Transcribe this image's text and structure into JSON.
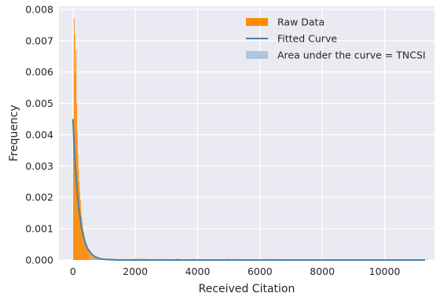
{
  "chart_data": {
    "type": "histogram",
    "title": "",
    "xlabel": "Received Citation",
    "ylabel": "Frequency",
    "xlim": [
      -450,
      11600
    ],
    "ylim": [
      0,
      0.0081
    ],
    "xticks": [
      0,
      2000,
      4000,
      6000,
      8000,
      10000
    ],
    "xtick_labels": [
      "0",
      "2000",
      "4000",
      "6000",
      "8000",
      "10000"
    ],
    "yticks": [
      0,
      0.001,
      0.002,
      0.003,
      0.004,
      0.005,
      0.006,
      0.007,
      0.008
    ],
    "ytick_labels": [
      "0.000",
      "0.001",
      "0.002",
      "0.003",
      "0.004",
      "0.005",
      "0.006",
      "0.007",
      "0.008"
    ],
    "grid": true,
    "legend_position": "top-right",
    "colors": {
      "plot_background": "#eaeaf2",
      "grid": "#ffffff",
      "raw_data": "#ff8c00",
      "fitted_curve": "#4682b4",
      "area_fill": "#b0c4de"
    },
    "series": [
      {
        "name": "Raw Data",
        "kind": "histogram",
        "x": [
          10,
          30,
          50,
          70,
          90,
          110,
          130,
          150,
          170,
          190,
          210,
          230,
          250,
          270,
          290,
          310,
          330,
          350,
          370,
          390,
          410,
          430,
          450,
          470,
          490,
          520,
          560,
          600,
          640,
          680,
          720,
          760,
          800,
          850,
          900,
          950,
          1000,
          1050,
          1100,
          1150,
          1200,
          1250,
          1300,
          1560,
          1950,
          2020,
          2080,
          2130,
          2200,
          2250,
          2310,
          2390,
          2600,
          2950,
          3320,
          3380,
          3860,
          4960,
          5150,
          6180,
          6380,
          11350
        ],
        "values": [
          0.0045,
          0.0077,
          0.0072,
          0.006,
          0.0067,
          0.005,
          0.0041,
          0.0034,
          0.0029,
          0.0025,
          0.0022,
          0.0019,
          0.0016,
          0.0014,
          0.0012,
          0.001,
          0.0009,
          0.0008,
          0.0007,
          0.0006,
          0.0005,
          0.00045,
          0.0004,
          0.00035,
          0.0003,
          0.00025,
          0.0002,
          0.00018,
          0.00015,
          0.00012,
          0.0001,
          9e-05,
          8e-05,
          6e-05,
          5e-05,
          4e-05,
          4e-05,
          3e-05,
          3e-05,
          3e-05,
          3e-05,
          2e-05,
          2e-05,
          3e-05,
          3e-05,
          3e-05,
          3e-05,
          3e-05,
          3e-05,
          3e-05,
          3e-05,
          3e-05,
          3e-05,
          3e-05,
          3e-05,
          3e-05,
          3e-05,
          3e-05,
          3e-05,
          3e-05,
          3e-05,
          3e-05
        ]
      },
      {
        "name": "Fitted Curve",
        "kind": "line",
        "x": [
          0,
          25,
          50,
          75,
          100,
          125,
          150,
          175,
          200,
          250,
          300,
          350,
          400,
          450,
          500,
          600,
          700,
          800,
          900,
          1000,
          1200,
          1500,
          2000,
          3000,
          4000,
          6000,
          8000,
          10000,
          11300
        ],
        "values": [
          0.0045,
          0.00394,
          0.00345,
          0.00302,
          0.00265,
          0.00232,
          0.00203,
          0.00178,
          0.00156,
          0.00119,
          0.00092,
          0.0007,
          0.00054,
          0.00041,
          0.00032,
          0.00019,
          0.00011,
          6.5e-05,
          3.8e-05,
          2.2e-05,
          8e-06,
          1.5e-06,
          1e-07,
          0.0,
          0.0,
          0.0,
          0.0,
          0.0,
          0.0
        ]
      },
      {
        "name": "Area under the curve = TNCSI",
        "kind": "area",
        "under": "Fitted Curve"
      }
    ]
  }
}
